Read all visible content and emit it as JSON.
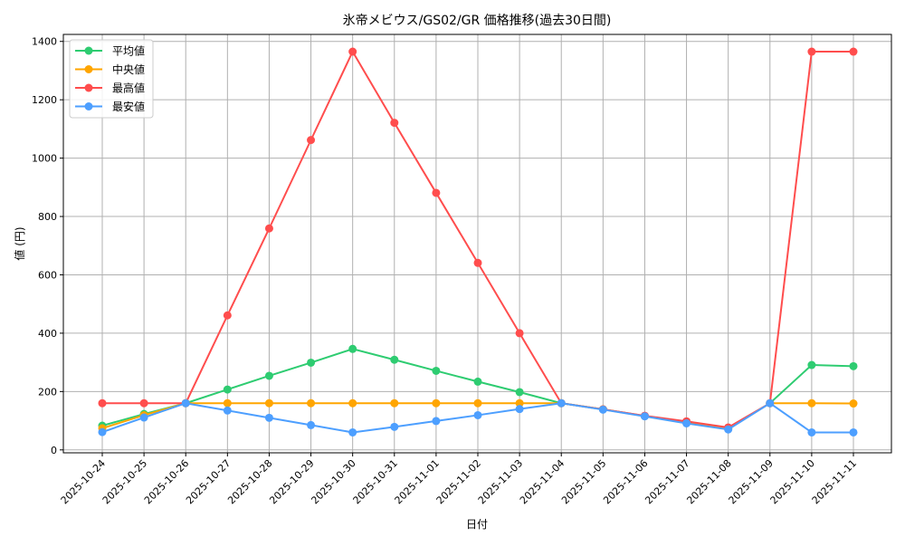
{
  "chart_data": {
    "type": "line",
    "title": "氷帝メビウス/GS02/GR 価格推移(過去30日間)",
    "xlabel": "日付",
    "ylabel": "値 (円)",
    "ylim": [
      -10,
      1424
    ],
    "yticks": [
      0,
      200,
      400,
      600,
      800,
      1000,
      1200,
      1400
    ],
    "grid": true,
    "legend_position": "upper left",
    "categories": [
      "2025-10-24",
      "2025-10-25",
      "2025-10-26",
      "2025-10-27",
      "2025-10-28",
      "2025-10-29",
      "2025-10-30",
      "2025-10-31",
      "2025-11-01",
      "2025-11-02",
      "2025-11-03",
      "2025-11-04",
      "2025-11-05",
      "2025-11-06",
      "2025-11-07",
      "2025-11-08",
      "2025-11-09",
      "2025-11-10",
      "2025-11-11"
    ],
    "series": [
      {
        "name": "平均値",
        "color": "#2ecc71",
        "values": [
          83,
          123,
          160,
          207,
          254,
          299,
          346,
          309,
          271,
          234,
          198,
          160,
          139,
          116,
          94,
          73,
          160,
          291,
          287
        ]
      },
      {
        "name": "中央値",
        "color": "#ffa500",
        "values": [
          74,
          119,
          160,
          160,
          160,
          160,
          160,
          160,
          160,
          160,
          160,
          160,
          139,
          116,
          94,
          73,
          160,
          160,
          159
        ]
      },
      {
        "name": "最高値",
        "color": "#ff4d4d",
        "values": [
          160,
          160,
          160,
          461,
          759,
          1062,
          1365,
          1121,
          881,
          641,
          400,
          160,
          139,
          117,
          98,
          77,
          160,
          1365,
          1365
        ]
      },
      {
        "name": "最安値",
        "color": "#4d9fff",
        "values": [
          61,
          111,
          160,
          135,
          110,
          85,
          60,
          79,
          99,
          119,
          140,
          160,
          138,
          115,
          91,
          70,
          160,
          60,
          60
        ]
      }
    ]
  }
}
